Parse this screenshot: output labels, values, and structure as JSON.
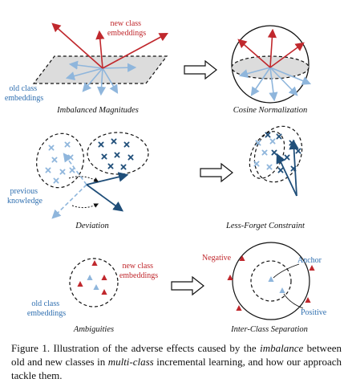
{
  "colors": {
    "red": "#c0282d",
    "light_blue": "#8fb6dc",
    "dark_blue": "#1f4e79",
    "label_blue": "#2f6fb0"
  },
  "panels": {
    "imbalanced": {
      "new_label": [
        "new class",
        "embeddings"
      ],
      "old_label": [
        "old class",
        "embeddings"
      ],
      "caption": "Imbalanced Magnitudes"
    },
    "cosine": {
      "caption": "Cosine Normalization"
    },
    "deviation": {
      "prev_label": [
        "previous",
        "knowledge"
      ],
      "caption": "Deviation"
    },
    "less_forget": {
      "caption": "Less-Forget Constraint"
    },
    "ambiguities": {
      "new_label": [
        "new class",
        "embeddings"
      ],
      "old_label": [
        "old class",
        "embeddings"
      ],
      "caption": "Ambiguities"
    },
    "inter_class": {
      "negative": "Negative",
      "anchor": "Anchor",
      "positive": "Positive",
      "caption": "Inter-Class Separation"
    }
  },
  "figure_caption": {
    "prefix": "Figure 1. Illustration of the adverse effects caused by the ",
    "em1": "imbalance",
    "mid": " between old and new classes in ",
    "em2": "multi-class",
    "suffix": " incremental learning, and how our approach tackle them."
  }
}
